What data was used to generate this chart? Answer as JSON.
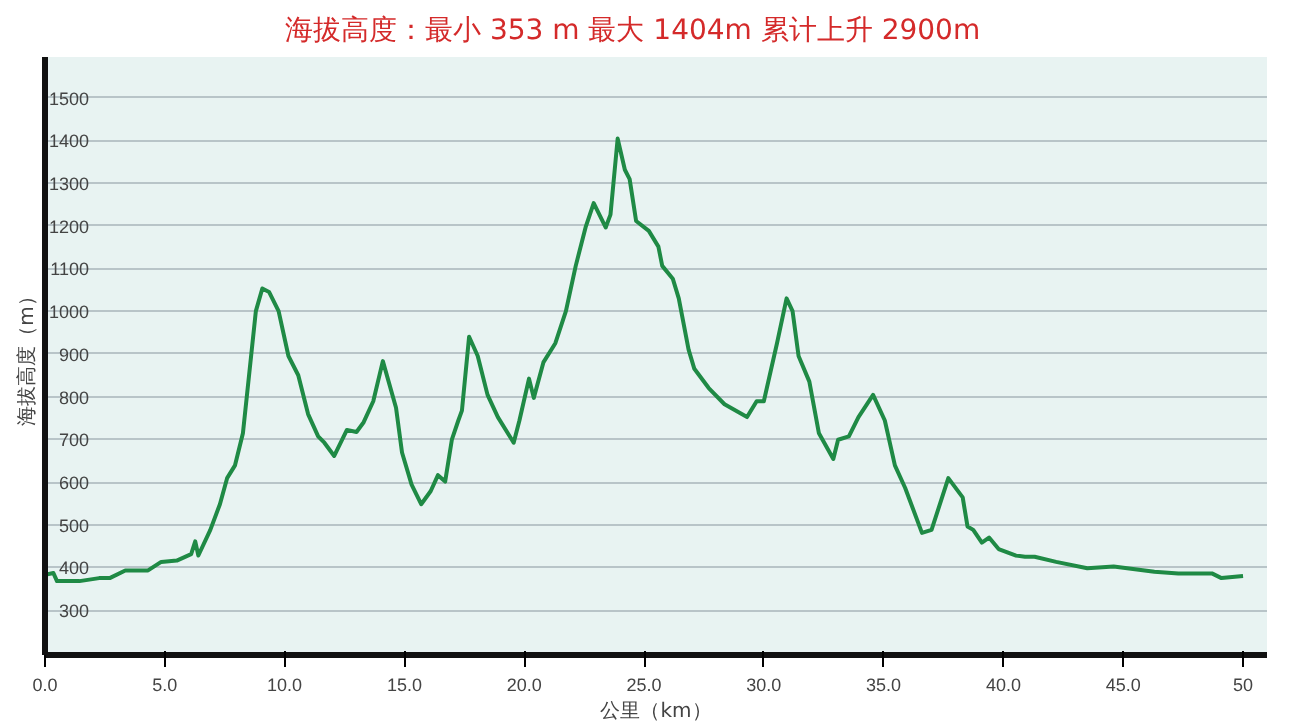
{
  "chart_data": {
    "type": "line",
    "title": "海拔高度：最小  353 m   最大  1404m       累计上升 2900m",
    "xlabel": "公里（km）",
    "ylabel": "海拔高度（m）",
    "x": [
      0,
      0.35,
      0.5,
      1.44,
      2.26,
      2.7,
      3.35,
      4.3,
      4.85,
      5.5,
      6.1,
      6.27,
      6.4,
      6.9,
      7.3,
      7.6,
      7.93,
      8.26,
      8.8,
      9.07,
      9.35,
      9.75,
      10.16,
      10.57,
      10.98,
      11.4,
      11.66,
      12.07,
      12.6,
      13.0,
      13.3,
      13.7,
      14.1,
      14.65,
      14.9,
      15.3,
      15.7,
      16.1,
      16.4,
      16.7,
      16.98,
      17.25,
      17.4,
      17.7,
      18.06,
      18.47,
      18.9,
      19.56,
      19.8,
      20.2,
      20.4,
      20.8,
      21.3,
      21.74,
      22.15,
      22.56,
      22.9,
      23.4,
      23.6,
      23.9,
      24.2,
      24.4,
      24.67,
      25.2,
      25.6,
      25.76,
      26.2,
      26.45,
      26.86,
      27.1,
      27.7,
      28.36,
      29.3,
      29.7,
      30.0,
      30.55,
      30.95,
      31.2,
      31.45,
      31.9,
      32.3,
      32.9,
      33.1,
      33.55,
      33.95,
      34.56,
      35.05,
      35.47,
      35.9,
      36.6,
      37.0,
      37.7,
      38.3,
      38.5,
      38.74,
      39.1,
      39.4,
      39.8,
      40.5,
      40.9,
      41.3,
      42.2,
      43.5,
      44.6,
      46.3,
      47.3,
      48.7,
      49.1,
      50.0
    ],
    "series": [
      {
        "color": "#1f8a45",
        "values": [
          383,
          387,
          368,
          368,
          375,
          375,
          393,
          393,
          413,
          416,
          431,
          461,
          428,
          488,
          548,
          609,
          639,
          714,
          1000,
          1053,
          1045,
          1000,
          895,
          850,
          759,
          707,
          692,
          661,
          722,
          717,
          740,
          789,
          883,
          774,
          669,
          594,
          548,
          579,
          616,
          601,
          699,
          744,
          767,
          940,
          895,
          804,
          752,
          692,
          744,
          842,
          797,
          880,
          925,
          1000,
          1106,
          1196,
          1253,
          1196,
          1226,
          1404,
          1331,
          1309,
          1211,
          1188,
          1151,
          1106,
          1076,
          1030,
          910,
          865,
          820,
          782,
          752,
          789,
          789,
          925,
          1030,
          1000,
          895,
          835,
          714,
          654,
          699,
          707,
          752,
          804,
          744,
          639,
          586,
          481,
          488,
          609,
          564,
          496,
          488,
          458,
          470,
          443,
          428,
          425,
          425,
          413,
          398,
          402,
          390,
          386,
          386,
          375,
          380
        ]
      }
    ],
    "xlim": [
      0,
      51
    ],
    "ylim": [
      195,
      1595
    ],
    "xticks": [
      {
        "value": 0,
        "label": "0.0"
      },
      {
        "value": 5,
        "label": "5.0"
      },
      {
        "value": 10,
        "label": "10.0"
      },
      {
        "value": 15,
        "label": "15.0"
      },
      {
        "value": 20,
        "label": "20.0"
      },
      {
        "value": 25,
        "label": "25.0"
      },
      {
        "value": 30,
        "label": "30.0"
      },
      {
        "value": 35,
        "label": "35.0"
      },
      {
        "value": 40,
        "label": "40.0"
      },
      {
        "value": 45,
        "label": "45.0"
      },
      50
    ],
    "yticks": [
      300,
      400,
      500,
      600,
      700,
      800,
      900,
      1000,
      1100,
      1200,
      1300,
      1400,
      1500
    ],
    "grid": "y",
    "marker": "none",
    "line_style": "solid"
  }
}
